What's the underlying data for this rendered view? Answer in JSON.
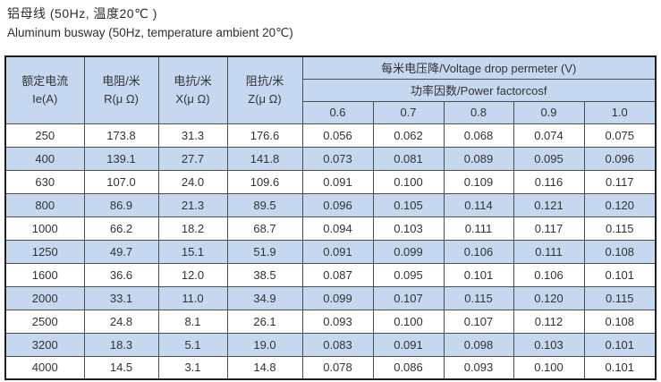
{
  "page": {
    "title_zh": "铝母线 (50Hz, 温度20℃ )",
    "title_en": "Aluminum busway (50Hz, temperature ambient 20℃)"
  },
  "colors": {
    "header_bg": "#c5d8ef",
    "alt_row_bg": "#c5d8ef",
    "outer_border": "#1f1f1f",
    "inner_border": "#4d4d4d",
    "text": "#333333"
  },
  "table": {
    "headers": {
      "rated_current_zh": "额定电流",
      "rated_current_sub": "Ie(A)",
      "resistance_zh": "电阻/米",
      "resistance_sub": "R(μ Ω)",
      "reactance_zh": "电抗/米",
      "reactance_sub": "X(μ Ω)",
      "impedance_zh": "阻抗/米",
      "impedance_sub": "Z(μ Ω)",
      "voltage_drop": "每米电压降/Voltage drop permeter (V)",
      "power_factor": "功率因数/Power factorcosf",
      "factors": [
        "0.6",
        "0.7",
        "0.8",
        "0.9",
        "1.0"
      ]
    },
    "rows": [
      [
        "250",
        "173.8",
        "31.3",
        "176.6",
        "0.056",
        "0.062",
        "0.068",
        "0.074",
        "0.075"
      ],
      [
        "400",
        "139.1",
        "27.7",
        "141.8",
        "0.073",
        "0.081",
        "0.089",
        "0.095",
        "0.096"
      ],
      [
        "630",
        "107.0",
        "24.0",
        "109.6",
        "0.091",
        "0.100",
        "0.109",
        "0.116",
        "0.117"
      ],
      [
        "800",
        "86.9",
        "21.3",
        "89.5",
        "0.096",
        "0.105",
        "0.114",
        "0.121",
        "0.120"
      ],
      [
        "1000",
        "66.2",
        "18.2",
        "68.7",
        "0.094",
        "0.103",
        "0.111",
        "0.117",
        "0.115"
      ],
      [
        "1250",
        "49.7",
        "15.1",
        "51.9",
        "0.091",
        "0.099",
        "0.106",
        "0.111",
        "0.108"
      ],
      [
        "1600",
        "36.6",
        "12.0",
        "38.5",
        "0.087",
        "0.095",
        "0.101",
        "0.106",
        "0.101"
      ],
      [
        "2000",
        "33.1",
        "11.0",
        "34.9",
        "0.099",
        "0.107",
        "0.115",
        "0.120",
        "0.115"
      ],
      [
        "2500",
        "24.8",
        "8.1",
        "26.1",
        "0.093",
        "0.100",
        "0.107",
        "0.112",
        "0.108"
      ],
      [
        "3200",
        "18.3",
        "5.1",
        "19.0",
        "0.083",
        "0.091",
        "0.098",
        "0.103",
        "0.101"
      ],
      [
        "4000",
        "14.5",
        "3.1",
        "14.8",
        "0.078",
        "0.086",
        "0.093",
        "0.100",
        "0.101"
      ]
    ]
  }
}
